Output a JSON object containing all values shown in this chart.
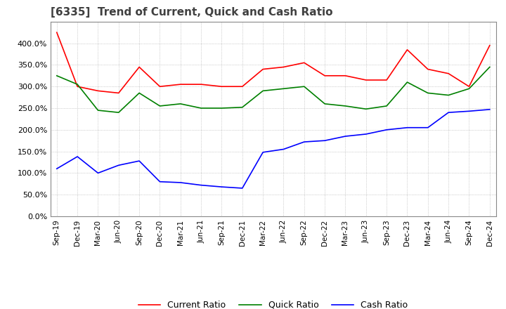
{
  "title": "[6335]  Trend of Current, Quick and Cash Ratio",
  "title_fontsize": 11,
  "ylim": [
    0,
    450
  ],
  "yticks": [
    0,
    50,
    100,
    150,
    200,
    250,
    300,
    350,
    400
  ],
  "background_color": "#ffffff",
  "plot_bg_color": "#ffffff",
  "grid_color": "#aaaaaa",
  "x_labels": [
    "Sep-19",
    "Dec-19",
    "Mar-20",
    "Jun-20",
    "Sep-20",
    "Dec-20",
    "Mar-21",
    "Jun-21",
    "Sep-21",
    "Dec-21",
    "Mar-22",
    "Jun-22",
    "Sep-22",
    "Dec-22",
    "Mar-23",
    "Jun-23",
    "Sep-23",
    "Dec-23",
    "Mar-24",
    "Jun-24",
    "Sep-24",
    "Dec-24"
  ],
  "current_ratio": [
    425,
    300,
    290,
    285,
    345,
    300,
    305,
    305,
    300,
    300,
    340,
    345,
    355,
    325,
    325,
    315,
    315,
    385,
    340,
    330,
    300,
    395
  ],
  "quick_ratio": [
    325,
    305,
    245,
    240,
    285,
    255,
    260,
    250,
    250,
    252,
    290,
    295,
    300,
    260,
    255,
    248,
    255,
    310,
    285,
    280,
    295,
    345
  ],
  "cash_ratio": [
    110,
    138,
    100,
    118,
    128,
    80,
    78,
    72,
    68,
    65,
    148,
    155,
    172,
    175,
    185,
    190,
    200,
    205,
    205,
    240,
    243,
    247
  ],
  "line_colors": [
    "#ff0000",
    "#008000",
    "#0000ff"
  ],
  "line_width": 1.2,
  "legend_labels": [
    "Current Ratio",
    "Quick Ratio",
    "Cash Ratio"
  ]
}
